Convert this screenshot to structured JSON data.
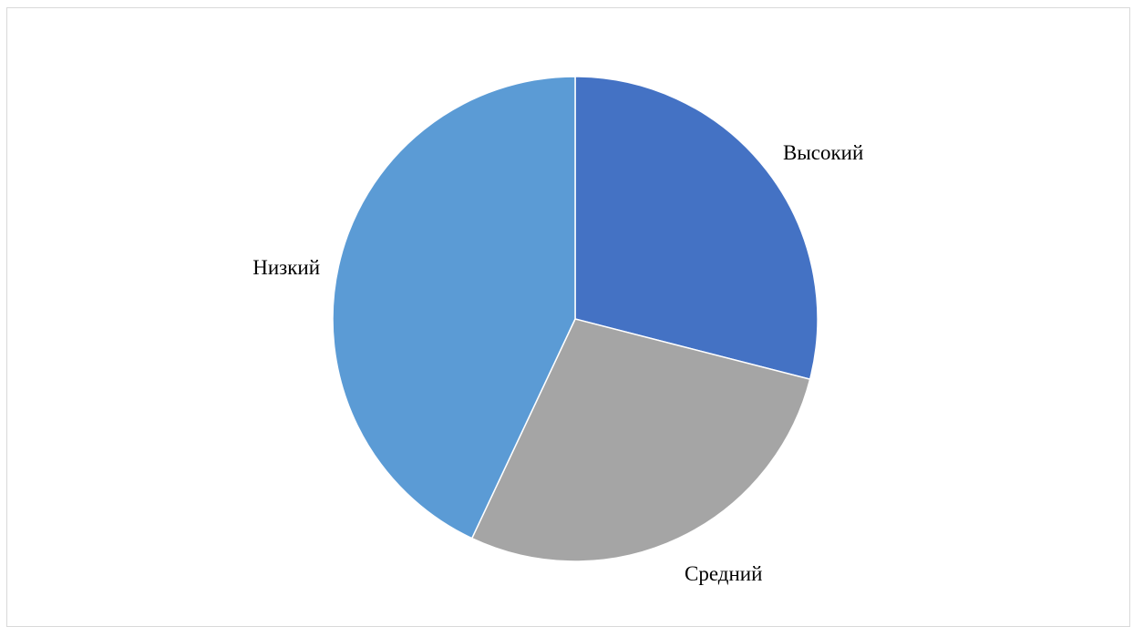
{
  "chart_data": {
    "type": "pie",
    "title": "",
    "categories": [
      "Высокий",
      "Средний",
      "Низкий"
    ],
    "values": [
      29,
      28,
      43
    ],
    "colors": [
      "#4472c4",
      "#a5a5a5",
      "#5b9bd5"
    ],
    "start_angle_deg": 0,
    "direction": "clockwise",
    "labels": {
      "high": "Высокий",
      "medium": "Средний",
      "low": "Низкий"
    },
    "legend": "none"
  }
}
